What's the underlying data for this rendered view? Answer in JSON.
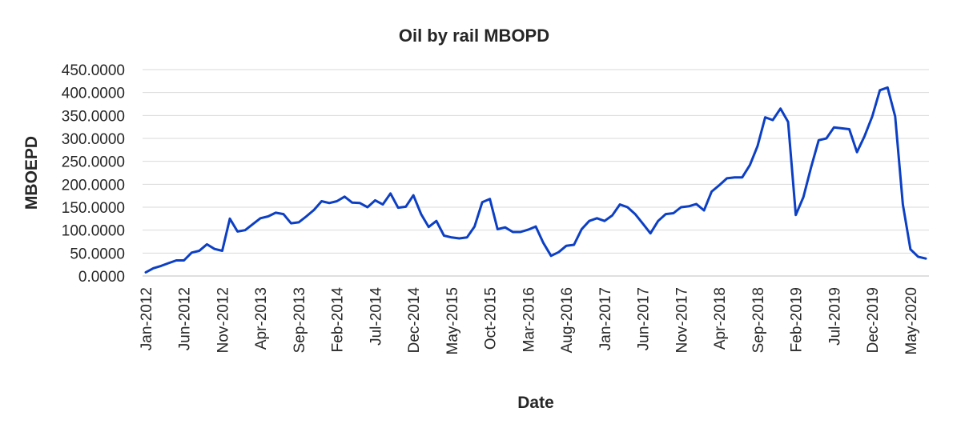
{
  "chart_data": {
    "type": "line",
    "title": "Oil by rail MBOPD",
    "xlabel": "Date",
    "ylabel": "MBOEPD",
    "ylim": [
      0,
      450
    ],
    "yticks": [
      "0.0000",
      "50.0000",
      "100.0000",
      "150.0000",
      "200.0000",
      "250.0000",
      "300.0000",
      "350.0000",
      "400.0000",
      "450.0000"
    ],
    "grid": true,
    "legend": "none",
    "xtick_labels": [
      "Jan-2012",
      "Jun-2012",
      "Nov-2012",
      "Apr-2013",
      "Sep-2013",
      "Feb-2014",
      "Jul-2014",
      "Dec-2014",
      "May-2015",
      "Oct-2015",
      "Mar-2016",
      "Aug-2016",
      "Jan-2017",
      "Jun-2017",
      "Nov-2017",
      "Apr-2018",
      "Sep-2018",
      "Feb-2019",
      "Jul-2019",
      "Dec-2019",
      "May-2020"
    ],
    "x": [
      "Jan-2012",
      "Feb-2012",
      "Mar-2012",
      "Apr-2012",
      "May-2012",
      "Jun-2012",
      "Jul-2012",
      "Aug-2012",
      "Sep-2012",
      "Oct-2012",
      "Nov-2012",
      "Dec-2012",
      "Jan-2013",
      "Feb-2013",
      "Mar-2013",
      "Apr-2013",
      "May-2013",
      "Jun-2013",
      "Jul-2013",
      "Aug-2013",
      "Sep-2013",
      "Oct-2013",
      "Nov-2013",
      "Dec-2013",
      "Jan-2014",
      "Feb-2014",
      "Mar-2014",
      "Apr-2014",
      "May-2014",
      "Jun-2014",
      "Jul-2014",
      "Aug-2014",
      "Sep-2014",
      "Oct-2014",
      "Nov-2014",
      "Dec-2014",
      "Jan-2015",
      "Feb-2015",
      "Mar-2015",
      "Apr-2015",
      "May-2015",
      "Jun-2015",
      "Jul-2015",
      "Aug-2015",
      "Sep-2015",
      "Oct-2015",
      "Nov-2015",
      "Dec-2015",
      "Jan-2016",
      "Feb-2016",
      "Mar-2016",
      "Apr-2016",
      "May-2016",
      "Jun-2016",
      "Jul-2016",
      "Aug-2016",
      "Sep-2016",
      "Oct-2016",
      "Nov-2016",
      "Dec-2016",
      "Jan-2017",
      "Feb-2017",
      "Mar-2017",
      "Apr-2017",
      "May-2017",
      "Jun-2017",
      "Jul-2017",
      "Aug-2017",
      "Sep-2017",
      "Oct-2017",
      "Nov-2017",
      "Dec-2017",
      "Jan-2018",
      "Feb-2018",
      "Mar-2018",
      "Apr-2018",
      "May-2018",
      "Jun-2018",
      "Jul-2018",
      "Aug-2018",
      "Sep-2018",
      "Oct-2018",
      "Nov-2018",
      "Dec-2018",
      "Jan-2019",
      "Feb-2019",
      "Mar-2019",
      "Apr-2019",
      "May-2019",
      "Jun-2019",
      "Jul-2019",
      "Aug-2019",
      "Sep-2019",
      "Oct-2019",
      "Nov-2019",
      "Dec-2019",
      "Jan-2020",
      "Feb-2020",
      "Mar-2020",
      "Apr-2020",
      "May-2020",
      "Jun-2020",
      "Jul-2020"
    ],
    "series": [
      {
        "color": "#0c3fc4",
        "values": [
          8,
          17,
          22,
          28,
          34,
          34,
          51,
          55,
          69,
          59,
          55,
          125,
          97,
          100,
          113,
          126,
          130,
          138,
          135,
          115,
          117,
          130,
          144,
          163,
          159,
          163,
          173,
          160,
          159,
          150,
          165,
          156,
          180,
          149,
          151,
          176,
          135,
          107,
          120,
          88,
          84,
          82,
          84,
          108,
          161,
          168,
          102,
          106,
          96,
          96,
          101,
          108,
          72,
          44,
          52,
          66,
          68,
          102,
          120,
          126,
          120,
          132,
          156,
          150,
          135,
          114,
          93,
          120,
          135,
          137,
          150,
          152,
          157,
          143,
          184,
          198,
          213,
          215,
          215,
          242,
          283,
          346,
          340,
          365,
          336,
          133,
          172,
          237,
          296,
          300,
          324,
          322,
          320,
          270,
          305,
          348,
          405,
          411,
          348,
          156,
          58,
          42,
          38
        ]
      }
    ]
  }
}
